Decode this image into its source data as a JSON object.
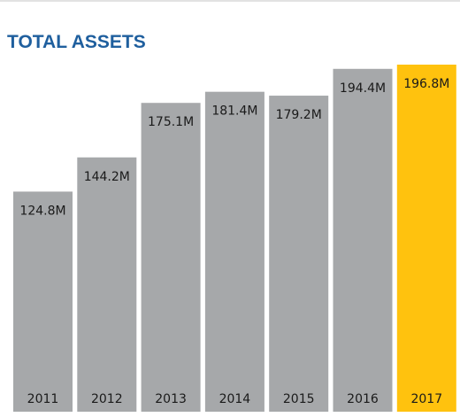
{
  "chart_data": {
    "type": "bar",
    "title": "TOTAL ASSETS",
    "categories": [
      "2011",
      "2012",
      "2013",
      "2014",
      "2015",
      "2016",
      "2017"
    ],
    "values": [
      124.8,
      144.2,
      175.1,
      181.4,
      179.2,
      194.4,
      196.8
    ],
    "value_labels": [
      "124.8M",
      "144.2M",
      "175.1M",
      "181.4M",
      "179.2M",
      "194.4M",
      "196.8M"
    ],
    "colors": [
      "#a6a8aa",
      "#a6a8aa",
      "#a6a8aa",
      "#a6a8aa",
      "#a6a8aa",
      "#a6a8aa",
      "#ffc20e"
    ]
  }
}
